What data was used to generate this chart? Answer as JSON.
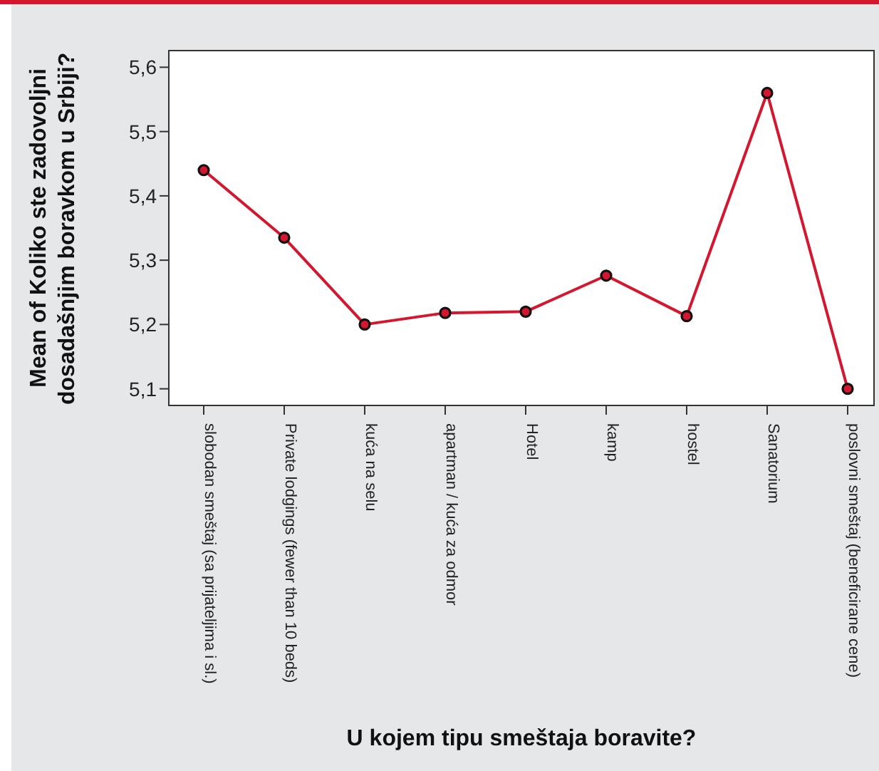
{
  "chart_data": {
    "type": "line",
    "xlabel": "U kojem tipu smeštaja boravite?",
    "ylabel": "Mean of Koliko ste zadovoljni dosadašnjim boravkom u Srbiji?",
    "categories": [
      "slobodan smeštaj (sa prijateljima i sl.)",
      "Private lodgings (fewer than 10 beds)",
      "kuća na selu",
      "apartman / kuća za odmor",
      "Hotel",
      "kamp",
      "hostel",
      "Sanatorium",
      "poslovni smeštaj (beneficirane cene)"
    ],
    "series": [
      {
        "color": "#d4172e",
        "values": [
          5.44,
          5.335,
          5.2,
          5.218,
          5.22,
          5.276,
          5.213,
          5.56,
          5.1
        ]
      }
    ],
    "ylim": [
      5.073,
      5.627
    ],
    "yticks": [
      {
        "value": 5.1,
        "label": "5,1"
      },
      {
        "value": 5.2,
        "label": "5,2"
      },
      {
        "value": 5.3,
        "label": "5,3"
      },
      {
        "value": 5.4,
        "label": "5,4"
      },
      {
        "value": 5.5,
        "label": "5,5"
      },
      {
        "value": 5.6,
        "label": "5,6"
      }
    ],
    "grid": false,
    "legend": false,
    "marker": "circle",
    "line_style": "solid"
  }
}
